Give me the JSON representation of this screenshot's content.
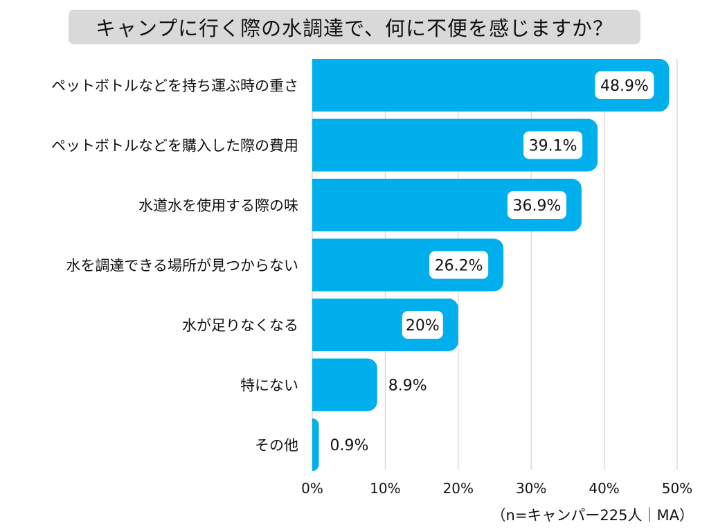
{
  "chart_data": {
    "type": "bar",
    "orientation": "horizontal",
    "title": "キャンプに行く際の水調達で、何に不便を感じますか？",
    "categories": [
      "ペットボトルなどを持ち運ぶ時の重さ",
      "ペットボトルなどを購入した際の費用",
      "水道水を使用する際の味",
      "水を調達できる場所が見つからない",
      "水が足りなくなる",
      "特にない",
      "その他"
    ],
    "values": [
      48.9,
      39.1,
      36.9,
      26.2,
      20,
      8.9,
      0.9
    ],
    "value_labels": [
      "48.9%",
      "39.1%",
      "36.9%",
      "26.2%",
      "20%",
      "8.9%",
      "0.9%"
    ],
    "x_ticks": [
      0,
      10,
      20,
      30,
      40,
      50
    ],
    "x_tick_labels": [
      "0%",
      "10%",
      "20%",
      "30%",
      "40%",
      "50%"
    ],
    "xlim": [
      0,
      50
    ],
    "grid": true,
    "xlabel": "",
    "ylabel": "",
    "note": "（n=キャンパー225人｜MA）",
    "bar_color": "#00afeb"
  }
}
